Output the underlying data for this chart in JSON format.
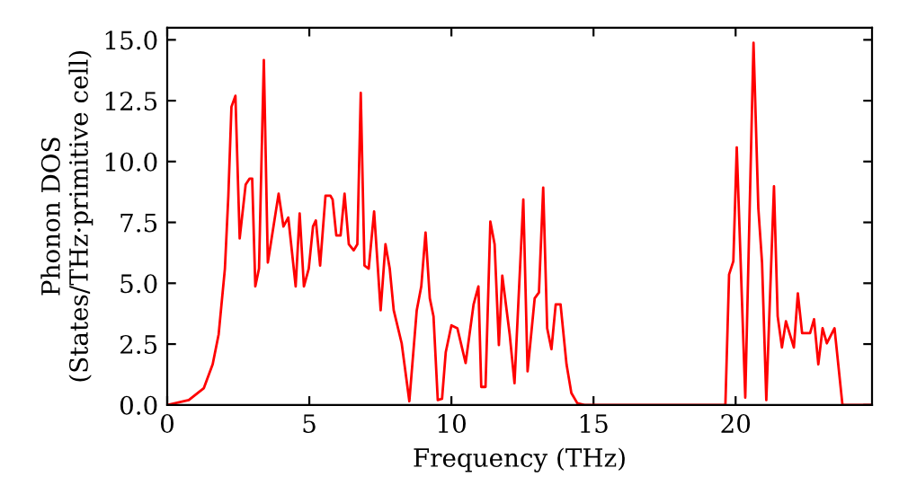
{
  "chart_data": {
    "type": "line",
    "xlabel": "Frequency (THz)",
    "ylabel": "Phonon DOS\n(States/THz·primitive cell)",
    "xlim": [
      0,
      24.8
    ],
    "ylim": [
      0,
      15.5
    ],
    "xticks": [
      0,
      5,
      10,
      15,
      20
    ],
    "yticks": [
      {
        "value": 0,
        "label": "0.0"
      },
      {
        "value": 2.5,
        "label": "2.5"
      },
      {
        "value": 5,
        "label": "5.0"
      },
      {
        "value": 7.5,
        "label": "7.5"
      },
      {
        "value": 10,
        "label": "10.0"
      },
      {
        "value": 12.5,
        "label": "12.5"
      },
      {
        "value": 15,
        "label": "15.0"
      }
    ],
    "grid": false,
    "marker": "none",
    "line_style": "solid",
    "series": [
      {
        "color": "#ff0000",
        "x": [
          0,
          0.76,
          1.29,
          1.6,
          1.81,
          2.03,
          2.15,
          2.26,
          2.4,
          2.55,
          2.76,
          2.9,
          2.99,
          3.1,
          3.23,
          3.4,
          3.54,
          3.92,
          4.09,
          4.26,
          4.52,
          4.66,
          4.81,
          4.98,
          5.13,
          5.23,
          5.38,
          5.57,
          5.74,
          5.82,
          5.95,
          6.1,
          6.24,
          6.39,
          6.56,
          6.69,
          6.81,
          6.94,
          7.09,
          7.28,
          7.51,
          7.68,
          7.83,
          7.97,
          8.25,
          8.52,
          8.78,
          8.94,
          9.09,
          9.24,
          9.37,
          9.52,
          9.67,
          9.8,
          10.0,
          10.21,
          10.5,
          10.78,
          10.95,
          11.05,
          11.2,
          11.37,
          11.52,
          11.67,
          11.79,
          12.05,
          12.22,
          12.53,
          12.68,
          12.93,
          13.08,
          13.23,
          13.37,
          13.52,
          13.67,
          13.84,
          14.05,
          14.22,
          14.43,
          14.68,
          19.64,
          19.77,
          19.92,
          20.04,
          20.34,
          20.63,
          20.8,
          20.93,
          21.08,
          21.35,
          21.48,
          21.63,
          21.77,
          22.05,
          22.19,
          22.34,
          22.62,
          22.76,
          22.91,
          23.06,
          23.21,
          23.48,
          23.76,
          24.8
        ],
        "values": [
          0,
          0.2,
          0.69,
          1.67,
          2.9,
          5.6,
          8.56,
          12.25,
          12.7,
          6.84,
          9.05,
          9.3,
          9.3,
          4.87,
          5.6,
          14.17,
          5.85,
          8.68,
          7.33,
          7.7,
          4.87,
          7.87,
          4.87,
          5.6,
          7.33,
          7.58,
          5.73,
          8.6,
          8.6,
          8.44,
          6.96,
          6.96,
          8.68,
          6.6,
          6.35,
          6.6,
          12.82,
          5.73,
          5.6,
          7.95,
          3.89,
          6.6,
          5.6,
          3.89,
          2.53,
          0.15,
          3.89,
          4.87,
          7.08,
          4.38,
          3.64,
          0.2,
          0.25,
          2.16,
          3.27,
          3.15,
          1.72,
          4.13,
          4.87,
          0.74,
          0.74,
          7.53,
          6.6,
          2.46,
          5.31,
          2.9,
          0.89,
          8.44,
          1.38,
          4.38,
          4.62,
          8.93,
          3.15,
          2.29,
          4.13,
          4.13,
          1.67,
          0.49,
          0.07,
          0,
          0,
          5.36,
          5.9,
          10.58,
          0.3,
          14.88,
          8.07,
          5.85,
          0.2,
          8.98,
          3.64,
          2.36,
          3.44,
          2.36,
          4.58,
          2.95,
          2.95,
          3.52,
          1.67,
          3.15,
          2.53,
          3.15,
          0,
          0
        ]
      }
    ]
  }
}
